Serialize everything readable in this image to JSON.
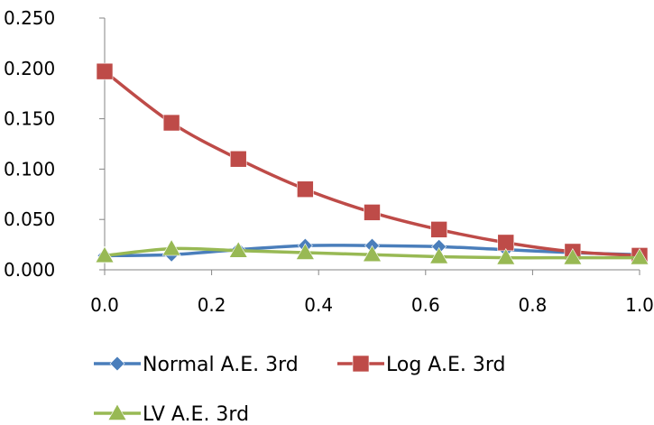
{
  "chart_data": {
    "type": "line",
    "title": "",
    "xlabel": "",
    "ylabel": "",
    "xlim": [
      0.0,
      1.0
    ],
    "ylim": [
      0.0,
      0.25
    ],
    "x_ticks": [
      "0.0",
      "0.2",
      "0.4",
      "0.6",
      "0.8",
      "1.0"
    ],
    "y_ticks": [
      "0.000",
      "0.050",
      "0.100",
      "0.150",
      "0.200",
      "0.250"
    ],
    "grid": false,
    "legend_position": "bottom",
    "smooth": true,
    "x": [
      0.0,
      0.125,
      0.25,
      0.375,
      0.5,
      0.625,
      0.75,
      0.875,
      1.0
    ],
    "series": [
      {
        "name": "Normal A.E. 3rd",
        "color": "#4a7ebb",
        "marker": "diamond",
        "values": [
          0.014,
          0.015,
          0.02,
          0.024,
          0.024,
          0.023,
          0.02,
          0.017,
          0.015
        ]
      },
      {
        "name": "Log A.E. 3rd",
        "color": "#be4b48",
        "marker": "square",
        "values": [
          0.197,
          0.146,
          0.11,
          0.08,
          0.057,
          0.04,
          0.027,
          0.018,
          0.014
        ]
      },
      {
        "name": "LV A.E. 3rd",
        "color": "#98b954",
        "marker": "triangle",
        "values": [
          0.014,
          0.021,
          0.019,
          0.017,
          0.015,
          0.013,
          0.012,
          0.012,
          0.012
        ]
      }
    ]
  }
}
